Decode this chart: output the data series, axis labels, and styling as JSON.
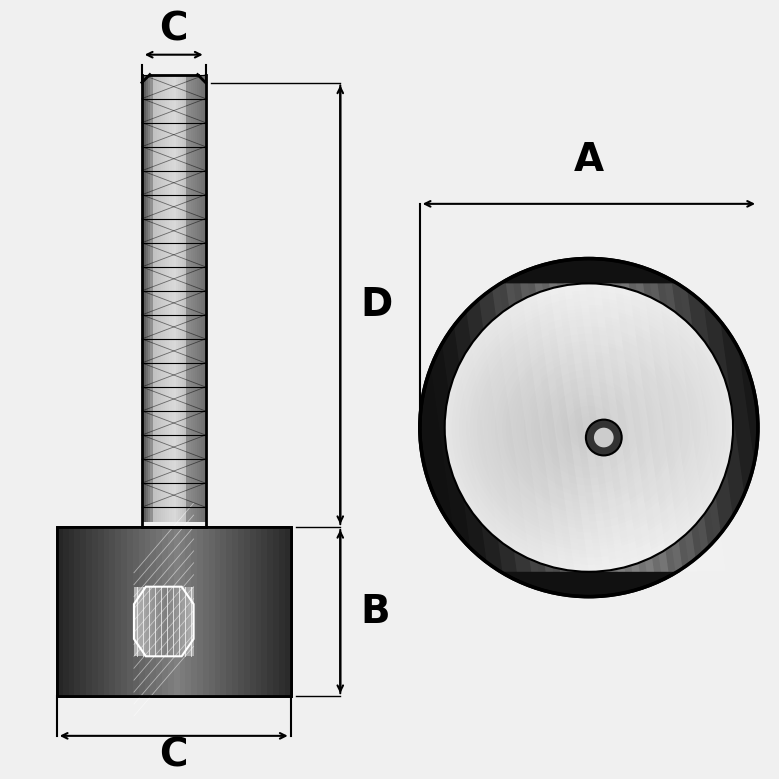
{
  "bg_color": "#f0f0f0",
  "line_color": "#000000",
  "rubber_color_dark": "#1a1a1a",
  "rubber_color_mid": "#555555",
  "rubber_color_light": "#888888",
  "bolt_color_light": "#cccccc",
  "bolt_color_mid": "#aaaaaa",
  "bolt_color_dark": "#888888",
  "label_C_top": "C",
  "label_D": "D",
  "label_B": "B",
  "label_C_bot": "C",
  "label_A": "A",
  "font_size_labels": 28,
  "arrow_color": "#000000"
}
